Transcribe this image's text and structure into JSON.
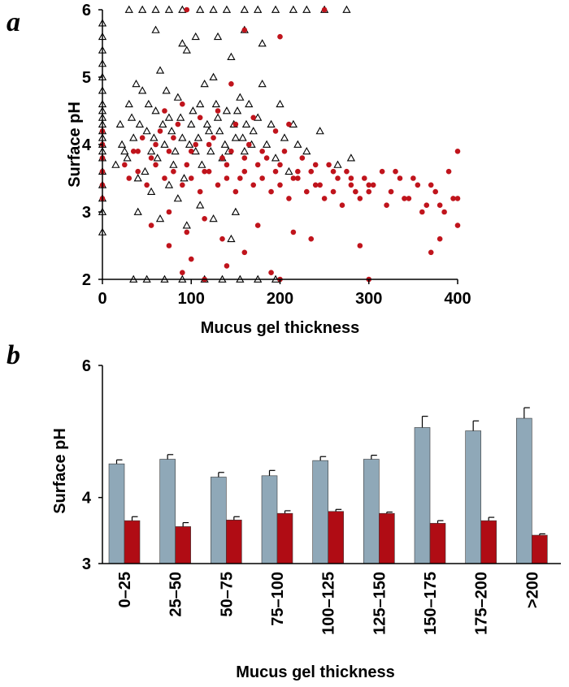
{
  "chart_data": [
    {
      "panel": "a",
      "type": "scatter",
      "title": "",
      "xlabel": "Mucus gel thickness",
      "ylabel": "Surface pH",
      "xlim": [
        0,
        400
      ],
      "ylim": [
        2,
        6
      ],
      "xticks": [
        "0",
        "100",
        "200",
        "300",
        "400"
      ],
      "yticks": [
        "2",
        "3",
        "4",
        "5",
        "6"
      ],
      "grid": false,
      "legend": "none",
      "colors": {
        "open_triangle": "#000000",
        "red_circle": "#c0141c"
      },
      "series": [
        {
          "marker": "open-triangle",
          "points": [
            [
              0,
              5.8
            ],
            [
              0,
              5.6
            ],
            [
              0,
              5.4
            ],
            [
              0,
              5.2
            ],
            [
              0,
              5.0
            ],
            [
              0,
              4.8
            ],
            [
              0,
              4.6
            ],
            [
              0,
              4.5
            ],
            [
              0,
              4.4
            ],
            [
              0,
              4.3
            ],
            [
              0,
              4.2
            ],
            [
              0,
              4.1
            ],
            [
              0,
              4.0
            ],
            [
              0,
              3.9
            ],
            [
              0,
              3.8
            ],
            [
              0,
              3.6
            ],
            [
              0,
              3.4
            ],
            [
              0,
              3.2
            ],
            [
              0,
              3.0
            ],
            [
              0,
              2.7
            ],
            [
              30,
              6
            ],
            [
              45,
              6
            ],
            [
              60,
              6
            ],
            [
              75,
              6
            ],
            [
              90,
              6
            ],
            [
              110,
              6
            ],
            [
              125,
              6
            ],
            [
              140,
              6
            ],
            [
              160,
              6
            ],
            [
              175,
              6
            ],
            [
              195,
              6
            ],
            [
              215,
              6
            ],
            [
              230,
              6
            ],
            [
              250,
              6
            ],
            [
              275,
              6
            ],
            [
              35,
              2
            ],
            [
              50,
              2
            ],
            [
              70,
              2
            ],
            [
              90,
              2
            ],
            [
              115,
              2
            ],
            [
              135,
              2
            ],
            [
              155,
              2
            ],
            [
              175,
              2
            ],
            [
              195,
              2
            ],
            [
              15,
              3.7
            ],
            [
              20,
              4.3
            ],
            [
              25,
              3.9
            ],
            [
              30,
              4.6
            ],
            [
              35,
              4.1
            ],
            [
              40,
              3.5
            ],
            [
              45,
              4.8
            ],
            [
              50,
              4.2
            ],
            [
              55,
              3.9
            ],
            [
              60,
              4.5
            ],
            [
              65,
              5.1
            ],
            [
              70,
              4.0
            ],
            [
              75,
              4.4
            ],
            [
              80,
              3.7
            ],
            [
              85,
              4.7
            ],
            [
              90,
              4.1
            ],
            [
              95,
              5.4
            ],
            [
              100,
              4.3
            ],
            [
              105,
              3.9
            ],
            [
              110,
              4.6
            ],
            [
              115,
              4.9
            ],
            [
              120,
              4.2
            ],
            [
              125,
              5.0
            ],
            [
              130,
              4.4
            ],
            [
              135,
              3.8
            ],
            [
              140,
              4.5
            ],
            [
              145,
              5.3
            ],
            [
              150,
              4.1
            ],
            [
              155,
              4.7
            ],
            [
              160,
              3.9
            ],
            [
              165,
              4.6
            ],
            [
              170,
              4.2
            ],
            [
              175,
              4.4
            ],
            [
              180,
              4.9
            ],
            [
              185,
              4.0
            ],
            [
              190,
              4.3
            ],
            [
              195,
              3.8
            ],
            [
              200,
              4.6
            ],
            [
              205,
              4.1
            ],
            [
              210,
              3.6
            ],
            [
              215,
              4.3
            ],
            [
              220,
              4.0
            ],
            [
              230,
              3.9
            ],
            [
              245,
              4.2
            ],
            [
              265,
              3.7
            ],
            [
              280,
              3.8
            ],
            [
              22,
              4.0
            ],
            [
              28,
              3.8
            ],
            [
              33,
              4.4
            ],
            [
              38,
              4.9
            ],
            [
              42,
              4.3
            ],
            [
              48,
              3.6
            ],
            [
              52,
              4.6
            ],
            [
              58,
              4.1
            ],
            [
              62,
              3.8
            ],
            [
              68,
              4.3
            ],
            [
              72,
              4.8
            ],
            [
              78,
              4.2
            ],
            [
              82,
              3.9
            ],
            [
              88,
              4.4
            ],
            [
              92,
              3.5
            ],
            [
              98,
              4.0
            ],
            [
              102,
              4.5
            ],
            [
              108,
              4.1
            ],
            [
              112,
              3.7
            ],
            [
              118,
              4.3
            ],
            [
              122,
              3.9
            ],
            [
              128,
              4.6
            ],
            [
              132,
              4.2
            ],
            [
              138,
              4.0
            ],
            [
              142,
              3.9
            ],
            [
              148,
              4.3
            ],
            [
              152,
              4.5
            ],
            [
              158,
              4.1
            ],
            [
              162,
              4.3
            ],
            [
              168,
              4.0
            ],
            [
              40,
              3.0
            ],
            [
              55,
              3.3
            ],
            [
              85,
              3.2
            ],
            [
              95,
              2.8
            ],
            [
              110,
              3.1
            ],
            [
              125,
              2.9
            ],
            [
              145,
              2.6
            ],
            [
              65,
              2.9
            ],
            [
              150,
              3.0
            ],
            [
              75,
              3.4
            ],
            [
              105,
              5.6
            ],
            [
              90,
              5.5
            ],
            [
              60,
              5.7
            ],
            [
              130,
              5.6
            ],
            [
              160,
              5.7
            ],
            [
              180,
              5.5
            ]
          ]
        },
        {
          "marker": "red-circle",
          "points": [
            [
              0,
              3.6
            ],
            [
              0,
              3.4
            ],
            [
              0,
              4.0
            ],
            [
              0,
              3.8
            ],
            [
              0,
              3.2
            ],
            [
              0,
              4.2
            ],
            [
              25,
              3.7
            ],
            [
              35,
              3.9
            ],
            [
              45,
              4.1
            ],
            [
              55,
              3.8
            ],
            [
              65,
              4.2
            ],
            [
              75,
              3.9
            ],
            [
              85,
              4.3
            ],
            [
              95,
              3.7
            ],
            [
              105,
              4.0
            ],
            [
              115,
              3.6
            ],
            [
              125,
              4.1
            ],
            [
              135,
              3.8
            ],
            [
              145,
              3.9
            ],
            [
              155,
              3.5
            ],
            [
              165,
              4.0
            ],
            [
              175,
              3.7
            ],
            [
              185,
              3.8
            ],
            [
              195,
              3.6
            ],
            [
              205,
              3.9
            ],
            [
              215,
              3.5
            ],
            [
              225,
              3.8
            ],
            [
              235,
              3.6
            ],
            [
              245,
              3.4
            ],
            [
              255,
              3.7
            ],
            [
              265,
              3.5
            ],
            [
              275,
              3.6
            ],
            [
              285,
              3.3
            ],
            [
              295,
              3.5
            ],
            [
              305,
              3.4
            ],
            [
              315,
              3.6
            ],
            [
              325,
              3.3
            ],
            [
              335,
              3.5
            ],
            [
              345,
              3.2
            ],
            [
              355,
              3.4
            ],
            [
              365,
              3.1
            ],
            [
              375,
              3.3
            ],
            [
              385,
              3.0
            ],
            [
              395,
              3.2
            ],
            [
              30,
              3.5
            ],
            [
              40,
              3.6
            ],
            [
              50,
              3.4
            ],
            [
              60,
              3.7
            ],
            [
              70,
              3.5
            ],
            [
              80,
              3.6
            ],
            [
              90,
              3.4
            ],
            [
              100,
              3.5
            ],
            [
              110,
              3.3
            ],
            [
              120,
              3.6
            ],
            [
              130,
              3.4
            ],
            [
              140,
              3.5
            ],
            [
              150,
              3.3
            ],
            [
              160,
              3.6
            ],
            [
              170,
              3.4
            ],
            [
              180,
              3.5
            ],
            [
              190,
              3.3
            ],
            [
              200,
              3.4
            ],
            [
              210,
              3.2
            ],
            [
              220,
              3.5
            ],
            [
              230,
              3.3
            ],
            [
              240,
              3.4
            ],
            [
              250,
              3.2
            ],
            [
              260,
              3.3
            ],
            [
              270,
              3.1
            ],
            [
              280,
              3.4
            ],
            [
              290,
              3.2
            ],
            [
              300,
              3.3
            ],
            [
              320,
              3.1
            ],
            [
              340,
              3.2
            ],
            [
              360,
              3.0
            ],
            [
              380,
              3.1
            ],
            [
              400,
              3.2
            ],
            [
              40,
              3.9
            ],
            [
              60,
              4.0
            ],
            [
              80,
              4.1
            ],
            [
              100,
              3.9
            ],
            [
              120,
              4.0
            ],
            [
              140,
              3.7
            ],
            [
              160,
              3.8
            ],
            [
              180,
              3.9
            ],
            [
              200,
              3.7
            ],
            [
              220,
              3.6
            ],
            [
              240,
              3.7
            ],
            [
              260,
              3.6
            ],
            [
              280,
              3.5
            ],
            [
              300,
              3.4
            ],
            [
              330,
              3.6
            ],
            [
              350,
              3.5
            ],
            [
              370,
              3.4
            ],
            [
              390,
              3.6
            ],
            [
              400,
              3.9
            ],
            [
              55,
              2.8
            ],
            [
              75,
              3.0
            ],
            [
              95,
              2.7
            ],
            [
              115,
              2.9
            ],
            [
              135,
              2.6
            ],
            [
              175,
              2.8
            ],
            [
              215,
              2.7
            ],
            [
              235,
              2.6
            ],
            [
              290,
              2.5
            ],
            [
              370,
              2.4
            ],
            [
              380,
              2.6
            ],
            [
              400,
              2.8
            ],
            [
              75,
              2.5
            ],
            [
              100,
              2.3
            ],
            [
              90,
              2.1
            ],
            [
              115,
              2.0
            ],
            [
              140,
              2.2
            ],
            [
              160,
              2.4
            ],
            [
              190,
              2.1
            ],
            [
              300,
              2.0
            ],
            [
              200,
              2.0
            ],
            [
              110,
              4.4
            ],
            [
              130,
              4.5
            ],
            [
              150,
              4.3
            ],
            [
              170,
              4.4
            ],
            [
              195,
              4.2
            ],
            [
              210,
              4.3
            ],
            [
              90,
              4.6
            ],
            [
              70,
              4.5
            ],
            [
              160,
              5.7
            ],
            [
              200,
              5.6
            ],
            [
              250,
              6
            ],
            [
              95,
              6
            ],
            [
              145,
              4.9
            ]
          ]
        }
      ]
    },
    {
      "panel": "b",
      "type": "bar",
      "title": "",
      "xlabel": "Mucus gel thickness",
      "ylabel": "Surface pH",
      "ylim": [
        3,
        6
      ],
      "yticks": [
        "3",
        "4",
        "6"
      ],
      "grid": false,
      "legend": "none",
      "categories": [
        "0–25",
        "25–50",
        "50–75",
        "75–100",
        "100–125",
        "125–150",
        "150–175",
        "175–200",
        ">200"
      ],
      "series": [
        {
          "color": "#8fa8b8",
          "values": [
            4.51,
            4.58,
            4.31,
            4.33,
            4.56,
            4.58,
            5.06,
            5.01,
            5.2
          ],
          "errors": [
            0.06,
            0.07,
            0.07,
            0.08,
            0.06,
            0.06,
            0.17,
            0.15,
            0.16
          ]
        },
        {
          "color": "#b00c14",
          "values": [
            3.65,
            3.56,
            3.66,
            3.76,
            3.79,
            3.76,
            3.61,
            3.65,
            3.43
          ],
          "errors": [
            0.06,
            0.06,
            0.05,
            0.04,
            0.03,
            0.02,
            0.04,
            0.05,
            0.02
          ]
        }
      ]
    }
  ]
}
